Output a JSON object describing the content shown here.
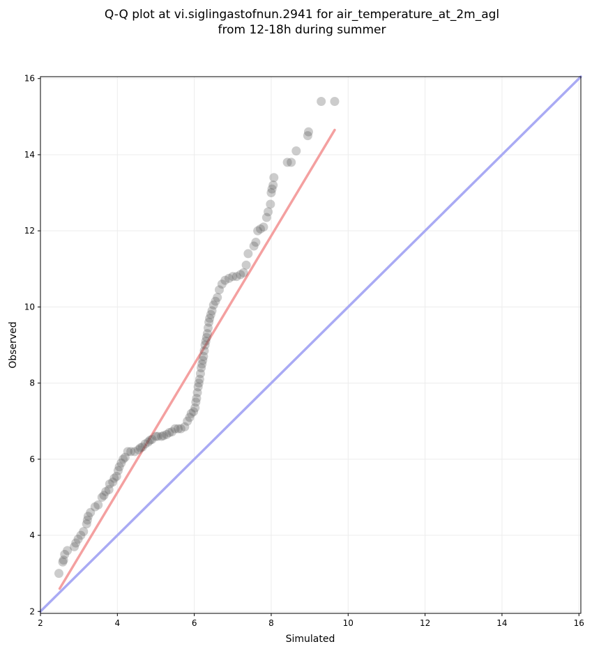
{
  "chart_data": {
    "type": "scatter",
    "title": [
      "Q-Q plot at vi.siglingastofnun.2941 for air_temperature_at_2m_agl",
      "from 12-18h during summer"
    ],
    "xlabel": "Simulated",
    "ylabel": "Observed",
    "xlim": [
      2,
      16.05
    ],
    "ylim": [
      1.95,
      16.05
    ],
    "xticks": [
      2,
      4,
      6,
      8,
      10,
      12,
      14,
      16
    ],
    "yticks": [
      2,
      4,
      6,
      8,
      10,
      12,
      14,
      16
    ],
    "grid": true,
    "colors": {
      "points": "#555555",
      "fit_line": "#f4a0a0",
      "identity_line": "#a9aaf4"
    },
    "fit_line": {
      "x": [
        2.5,
        9.65
      ],
      "y": [
        2.6,
        14.65
      ]
    },
    "identity_line": {
      "x": [
        2,
        16.05
      ],
      "y": [
        2,
        16.05
      ]
    },
    "points": [
      [
        2.48,
        3.0
      ],
      [
        2.58,
        3.3
      ],
      [
        2.6,
        3.35
      ],
      [
        2.63,
        3.5
      ],
      [
        2.7,
        3.6
      ],
      [
        2.88,
        3.7
      ],
      [
        2.92,
        3.8
      ],
      [
        2.98,
        3.9
      ],
      [
        3.05,
        4.0
      ],
      [
        3.12,
        4.1
      ],
      [
        3.2,
        4.3
      ],
      [
        3.22,
        4.4
      ],
      [
        3.24,
        4.5
      ],
      [
        3.3,
        4.6
      ],
      [
        3.42,
        4.75
      ],
      [
        3.5,
        4.8
      ],
      [
        3.6,
        5.0
      ],
      [
        3.65,
        5.05
      ],
      [
        3.7,
        5.15
      ],
      [
        3.78,
        5.2
      ],
      [
        3.8,
        5.35
      ],
      [
        3.88,
        5.4
      ],
      [
        3.92,
        5.5
      ],
      [
        3.98,
        5.55
      ],
      [
        4.02,
        5.7
      ],
      [
        4.05,
        5.8
      ],
      [
        4.1,
        5.9
      ],
      [
        4.15,
        6.0
      ],
      [
        4.2,
        6.05
      ],
      [
        4.27,
        6.2
      ],
      [
        4.35,
        6.2
      ],
      [
        4.45,
        6.2
      ],
      [
        4.55,
        6.25
      ],
      [
        4.6,
        6.3
      ],
      [
        4.65,
        6.32
      ],
      [
        4.72,
        6.4
      ],
      [
        4.8,
        6.45
      ],
      [
        4.85,
        6.5
      ],
      [
        4.9,
        6.52
      ],
      [
        5.0,
        6.6
      ],
      [
        5.05,
        6.6
      ],
      [
        5.15,
        6.6
      ],
      [
        5.2,
        6.62
      ],
      [
        5.28,
        6.65
      ],
      [
        5.35,
        6.7
      ],
      [
        5.42,
        6.72
      ],
      [
        5.5,
        6.8
      ],
      [
        5.58,
        6.8
      ],
      [
        5.65,
        6.8
      ],
      [
        5.75,
        6.85
      ],
      [
        5.82,
        7.0
      ],
      [
        5.88,
        7.1
      ],
      [
        5.92,
        7.2
      ],
      [
        5.98,
        7.25
      ],
      [
        6.02,
        7.35
      ],
      [
        6.04,
        7.5
      ],
      [
        6.06,
        7.6
      ],
      [
        6.08,
        7.75
      ],
      [
        6.1,
        7.9
      ],
      [
        6.12,
        8.0
      ],
      [
        6.14,
        8.1
      ],
      [
        6.16,
        8.25
      ],
      [
        6.18,
        8.4
      ],
      [
        6.2,
        8.5
      ],
      [
        6.22,
        8.6
      ],
      [
        6.24,
        8.7
      ],
      [
        6.26,
        8.85
      ],
      [
        6.28,
        9.0
      ],
      [
        6.3,
        9.1
      ],
      [
        6.32,
        9.2
      ],
      [
        6.34,
        9.3
      ],
      [
        6.36,
        9.45
      ],
      [
        6.38,
        9.6
      ],
      [
        6.4,
        9.7
      ],
      [
        6.43,
        9.8
      ],
      [
        6.46,
        9.9
      ],
      [
        6.5,
        10.05
      ],
      [
        6.55,
        10.15
      ],
      [
        6.6,
        10.25
      ],
      [
        6.65,
        10.45
      ],
      [
        6.72,
        10.6
      ],
      [
        6.8,
        10.7
      ],
      [
        6.9,
        10.75
      ],
      [
        7.0,
        10.8
      ],
      [
        7.1,
        10.8
      ],
      [
        7.2,
        10.85
      ],
      [
        7.28,
        10.9
      ],
      [
        7.35,
        11.1
      ],
      [
        7.4,
        11.4
      ],
      [
        7.55,
        11.6
      ],
      [
        7.6,
        11.7
      ],
      [
        7.65,
        12.0
      ],
      [
        7.72,
        12.05
      ],
      [
        7.8,
        12.1
      ],
      [
        7.88,
        12.35
      ],
      [
        7.92,
        12.5
      ],
      [
        7.98,
        12.7
      ],
      [
        8.0,
        13.0
      ],
      [
        8.02,
        13.1
      ],
      [
        8.05,
        13.2
      ],
      [
        8.07,
        13.4
      ],
      [
        8.42,
        13.8
      ],
      [
        8.52,
        13.8
      ],
      [
        8.65,
        14.1
      ],
      [
        8.95,
        14.5
      ],
      [
        8.97,
        14.6
      ],
      [
        9.3,
        15.4
      ],
      [
        9.65,
        15.4
      ]
    ]
  }
}
